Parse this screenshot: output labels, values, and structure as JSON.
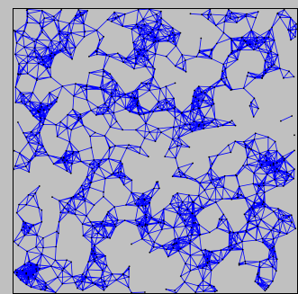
{
  "image": {
    "subject": "random-geometric-graph",
    "colors": {
      "background": "#c0c0c0",
      "edge": "#0000ff",
      "node": "#000000",
      "frame": "#000000"
    },
    "icons": [
      "graph-network-icon"
    ]
  }
}
